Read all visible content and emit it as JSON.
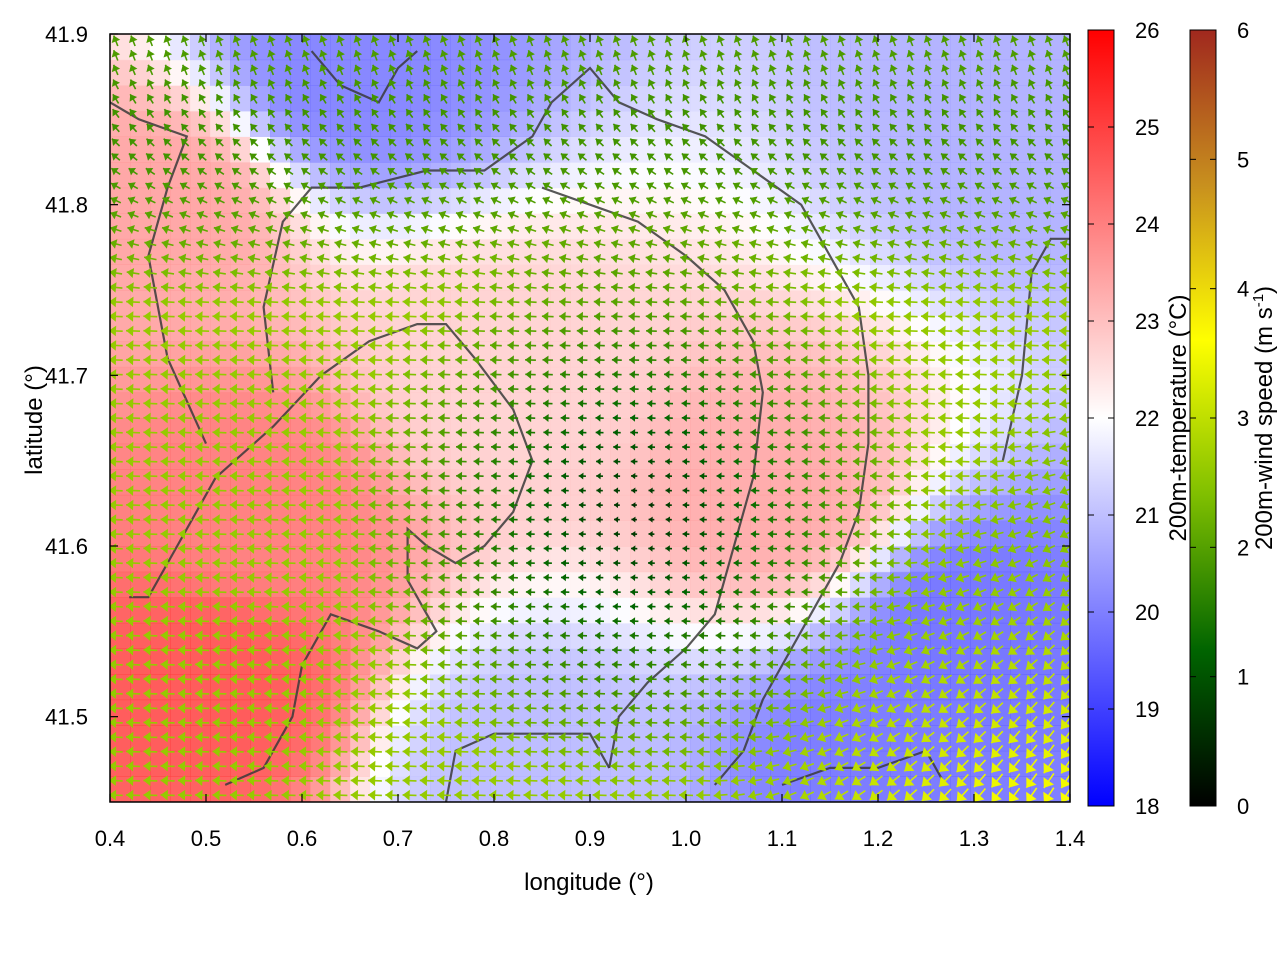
{
  "chart_data": {
    "type": "heatmap",
    "title": "",
    "xlabel": "longitude (°)",
    "ylabel": "latitude (°)",
    "xlim": [
      0.4,
      1.4
    ],
    "ylim": [
      41.45,
      41.9
    ],
    "x_ticks": [
      "0.4",
      "0.5",
      "0.6",
      "0.7",
      "0.8",
      "0.9",
      "1.0",
      "1.1",
      "1.2",
      "1.3",
      "1.4"
    ],
    "y_ticks": [
      "41.5",
      "41.6",
      "41.7",
      "41.8",
      "41.9"
    ],
    "grid": false,
    "legend": "none",
    "colorbars": [
      {
        "label": "200m-temperature (°C)",
        "range": [
          18,
          26
        ],
        "ticks": [
          "18",
          "19",
          "20",
          "21",
          "22",
          "23",
          "24",
          "25",
          "26"
        ],
        "colors": [
          "#0000ff",
          "#ffffff",
          "#ff0000"
        ]
      },
      {
        "label": "200m-wind speed (m s-1)",
        "label_main": "200m-wind speed (m s",
        "label_sup": "-1",
        "label_end": ")",
        "range": [
          0,
          6
        ],
        "ticks": [
          "0",
          "1",
          "2",
          "3",
          "4",
          "5",
          "6"
        ],
        "colors": [
          "#000000",
          "#006400",
          "#7fbf00",
          "#ffff00",
          "#c8901e",
          "#a0281e"
        ]
      }
    ],
    "temperature_field": {
      "description_values_degC": [
        {
          "lon": 0.5,
          "lat": 41.52,
          "value": 25.0
        },
        {
          "lon": 0.55,
          "lat": 41.62,
          "value": 24.3
        },
        {
          "lon": 0.45,
          "lat": 41.8,
          "value": 23.6
        },
        {
          "lon": 0.65,
          "lat": 41.88,
          "value": 19.8
        },
        {
          "lon": 0.8,
          "lat": 41.7,
          "value": 22.8
        },
        {
          "lon": 1.1,
          "lat": 41.63,
          "value": 23.5
        },
        {
          "lon": 1.3,
          "lat": 41.55,
          "value": 19.5
        },
        {
          "lon": 1.2,
          "lat": 41.47,
          "value": 19.6
        },
        {
          "lon": 0.84,
          "lat": 41.47,
          "value": 20.8
        },
        {
          "lon": 1.37,
          "lat": 41.85,
          "value": 20.6
        }
      ]
    },
    "wind_field": {
      "regions": [
        {
          "name": "west",
          "lon": [
            0.4,
            0.7
          ],
          "lat": [
            41.45,
            41.9
          ],
          "direction": "westward",
          "speed": 2.8
        },
        {
          "name": "center",
          "lon": [
            0.75,
            1.1
          ],
          "lat": [
            41.5,
            41.75
          ],
          "direction": "weak",
          "speed": 0.8
        },
        {
          "name": "north",
          "lon": [
            0.6,
            1.4
          ],
          "lat": [
            41.75,
            41.9
          ],
          "direction": "northwestward",
          "speed": 1.8
        },
        {
          "name": "southeast",
          "lon": [
            1.05,
            1.4
          ],
          "lat": [
            41.45,
            41.7
          ],
          "direction": "southwestward",
          "speed": 4.8
        }
      ]
    }
  }
}
